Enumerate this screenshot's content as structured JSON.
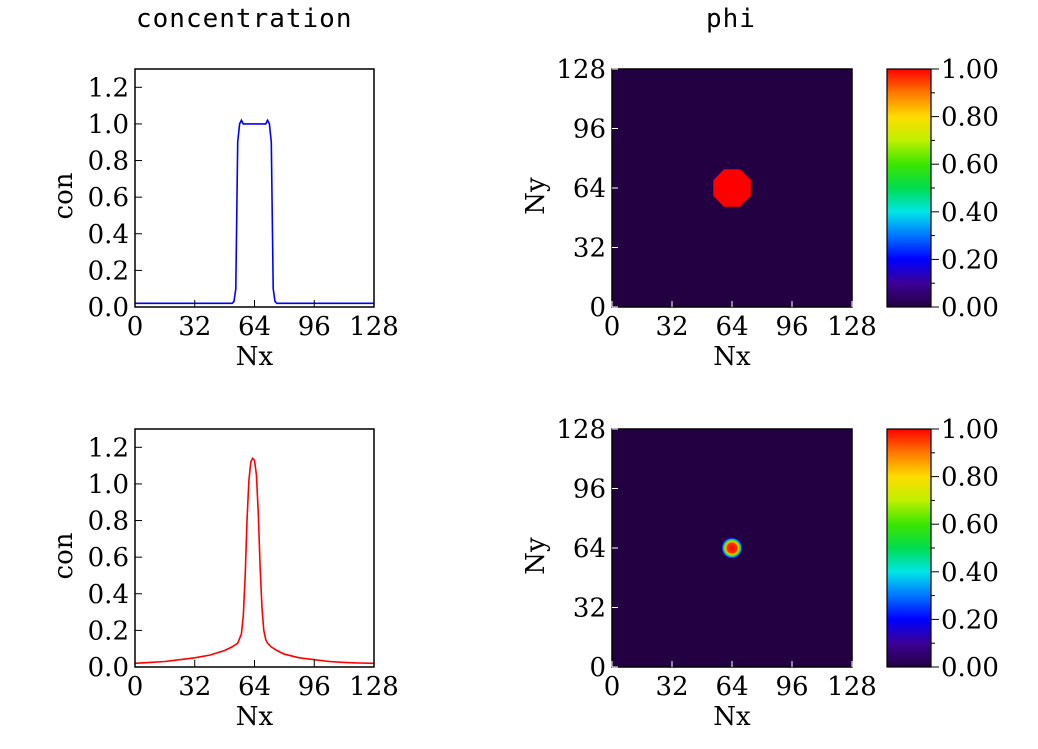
{
  "titles": {
    "left": "concentration",
    "right": "phi"
  },
  "chart_data": [
    {
      "type": "line",
      "xlabel": "Nx",
      "ylabel": "con",
      "xlim": [
        0,
        128
      ],
      "ylim": [
        0,
        1.3
      ],
      "xticks": [
        "0",
        "32",
        "64",
        "96",
        "128"
      ],
      "yticks": [
        "0.0",
        "0.2",
        "0.4",
        "0.6",
        "0.8",
        "1.0",
        "1.2"
      ],
      "series": [
        {
          "color": "#0000ff",
          "x": [
            0,
            52,
            53,
            54,
            55,
            56,
            57,
            58,
            60,
            64,
            68,
            70,
            71,
            72,
            73,
            74,
            75,
            76,
            128
          ],
          "y": [
            0.02,
            0.02,
            0.03,
            0.1,
            0.9,
            1.0,
            1.02,
            1.0,
            1.0,
            1.0,
            1.0,
            1.0,
            1.02,
            1.0,
            0.9,
            0.1,
            0.03,
            0.02,
            0.02
          ]
        }
      ]
    },
    {
      "type": "heatmap",
      "xlabel": "Nx",
      "ylabel": "Ny",
      "xlim": [
        0,
        128
      ],
      "ylim": [
        0,
        128
      ],
      "xticks": [
        "0",
        "32",
        "64",
        "96",
        "128"
      ],
      "yticks": [
        "0",
        "32",
        "64",
        "96",
        "128"
      ],
      "background_color": "#230042",
      "blob": {
        "center_x": 64,
        "center_y": 64,
        "radius": 10,
        "edge": "sharp",
        "peak_value": 1.0
      },
      "colorbar": {
        "min": 0,
        "max": 1,
        "ticks": [
          "0.00",
          "0.20",
          "0.40",
          "0.60",
          "0.80",
          "1.00"
        ]
      }
    },
    {
      "type": "line",
      "xlabel": "Nx",
      "ylabel": "con",
      "xlim": [
        0,
        128
      ],
      "ylim": [
        0,
        1.3
      ],
      "xticks": [
        "0",
        "32",
        "64",
        "96",
        "128"
      ],
      "yticks": [
        "0.0",
        "0.2",
        "0.4",
        "0.6",
        "0.8",
        "1.0",
        "1.2"
      ],
      "series": [
        {
          "color": "#ff0000",
          "x": [
            0,
            8,
            16,
            24,
            32,
            40,
            48,
            52,
            55,
            57,
            58,
            59,
            60,
            61,
            62,
            63,
            64,
            65,
            66,
            67,
            68,
            69,
            70,
            71,
            73,
            76,
            80,
            88,
            96,
            104,
            112,
            120,
            128
          ],
          "y": [
            0.02,
            0.025,
            0.03,
            0.04,
            0.05,
            0.065,
            0.09,
            0.11,
            0.13,
            0.18,
            0.28,
            0.5,
            0.8,
            1.02,
            1.12,
            1.14,
            1.13,
            1.05,
            0.85,
            0.55,
            0.32,
            0.2,
            0.15,
            0.13,
            0.11,
            0.09,
            0.07,
            0.05,
            0.04,
            0.03,
            0.025,
            0.022,
            0.02
          ]
        }
      ]
    },
    {
      "type": "heatmap",
      "xlabel": "Nx",
      "ylabel": "Ny",
      "xlim": [
        0,
        128
      ],
      "ylim": [
        0,
        128
      ],
      "xticks": [
        "0",
        "32",
        "64",
        "96",
        "128"
      ],
      "yticks": [
        "0",
        "32",
        "64",
        "96",
        "128"
      ],
      "background_color": "#230042",
      "blob": {
        "center_x": 64,
        "center_y": 64,
        "radius": 5,
        "edge": "smooth",
        "peak_value": 1.0
      },
      "colorbar": {
        "min": 0,
        "max": 1,
        "ticks": [
          "0.00",
          "0.20",
          "0.40",
          "0.60",
          "0.80",
          "1.00"
        ]
      }
    }
  ]
}
